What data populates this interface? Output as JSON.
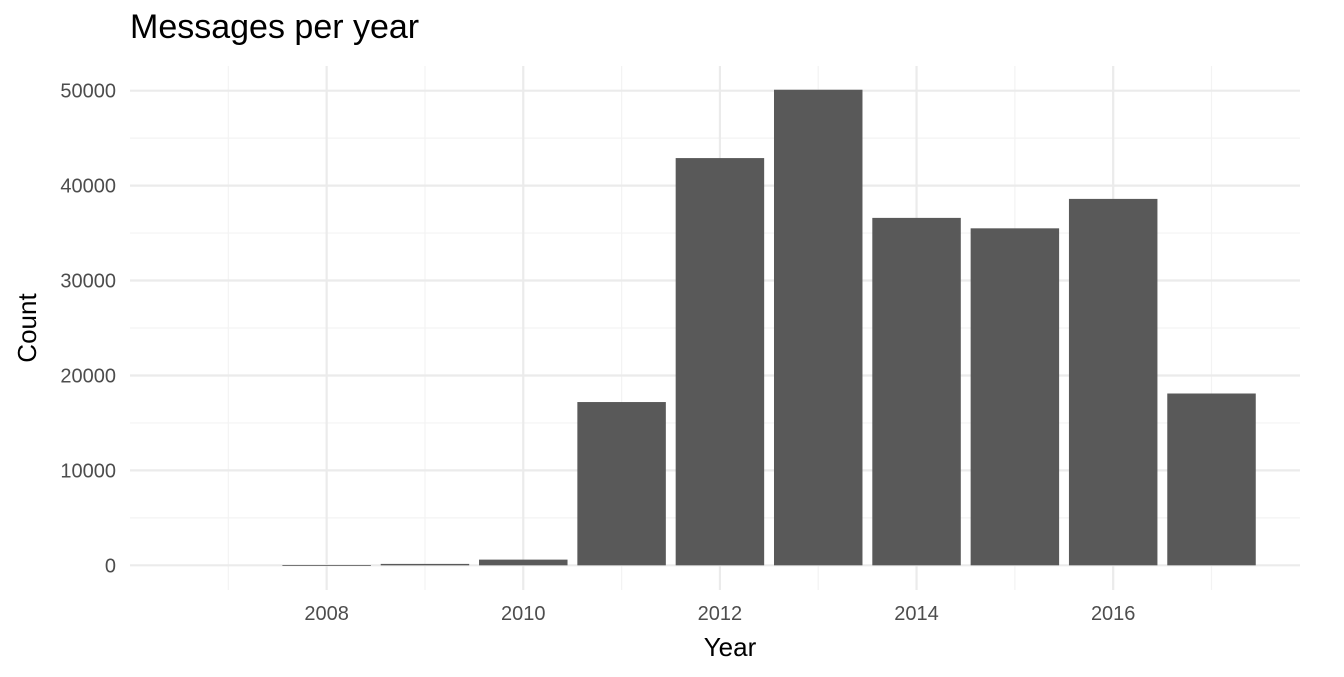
{
  "chart_data": {
    "type": "bar",
    "title": "Messages per year",
    "xlabel": "Year",
    "ylabel": "Count",
    "categories": [
      2007,
      2008,
      2009,
      2010,
      2011,
      2012,
      2013,
      2014,
      2015,
      2016,
      2017
    ],
    "values": [
      0,
      20,
      150,
      600,
      17200,
      42900,
      50100,
      36600,
      35500,
      38600,
      18100
    ],
    "x_ticks": [
      2008,
      2010,
      2012,
      2014,
      2016
    ],
    "y_ticks": [
      0,
      10000,
      20000,
      30000,
      40000,
      50000
    ],
    "xlim": [
      2006.0,
      2017.9
    ],
    "ylim": [
      -2600,
      52600
    ],
    "grid": true,
    "colors": {
      "bar": "#595959",
      "grid_major": "#ebebeb",
      "grid_minor": "#f3f3f3",
      "tick_text": "#4d4d4d"
    }
  }
}
